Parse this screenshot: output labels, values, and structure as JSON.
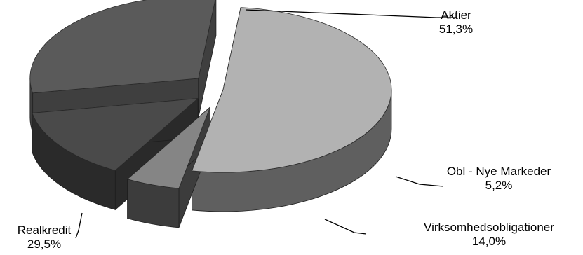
{
  "chart_data": {
    "type": "pie",
    "title": "",
    "style": "3d-exploded",
    "slices": [
      {
        "label": "Aktier",
        "value_label": "51,3%",
        "value": 51.3,
        "top_color": "#b2b2b2",
        "side_color": "#5f5f5f"
      },
      {
        "label": "Obl - Nye Markeder",
        "value_label": "5,2%",
        "value": 5.2,
        "top_color": "#858585",
        "side_color": "#3c3c3c"
      },
      {
        "label": "Virksomhedsobligationer",
        "value_label": "14,0%",
        "value": 14.0,
        "top_color": "#4a4a4a",
        "side_color": "#2a2a2a"
      },
      {
        "label": "Realkredit",
        "value_label": "29,5%",
        "value": 29.5,
        "top_color": "#5a5a5a",
        "side_color": "#3f3f3f"
      }
    ],
    "legend": "none"
  }
}
